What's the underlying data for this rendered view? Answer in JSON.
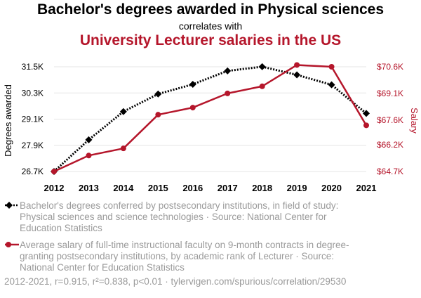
{
  "header": {
    "title": "Bachelor's degrees awarded in Physical sciences",
    "connector": "correlates with",
    "subtitle": "University Lecturer salaries in the US"
  },
  "chart_data": {
    "type": "line",
    "x": [
      2012,
      2013,
      2014,
      2015,
      2016,
      2017,
      2018,
      2019,
      2020,
      2021
    ],
    "series": [
      {
        "name": "Bachelor's degrees conferred by postsecondary institutions, in field of study: Physical sciences and science technologies · Source: National Center for Education Statistics",
        "axis": "left",
        "color": "#000000",
        "style": "dotted",
        "marker": "diamond",
        "values": [
          26702,
          28153,
          29446,
          30251,
          30695,
          31311,
          31503,
          31129,
          30673,
          29361
        ]
      },
      {
        "name": "Average salary of full-time instructional faculty on 9-month contracts in degree-granting postsecondary institutions, by academic rank of Lecturer · Source: National Center for Education Statistics",
        "axis": "right",
        "color": "#b5162b",
        "style": "solid",
        "marker": "circle",
        "values": [
          64700,
          65600,
          66000,
          67900,
          68300,
          69100,
          69500,
          70700,
          70600,
          67300
        ]
      }
    ],
    "ylabel": "Degrees awarded",
    "y2label": "Salary",
    "yticks": [
      26700,
      27900,
      29100,
      30300,
      31500
    ],
    "ytick_labels": [
      "26.7K",
      "27.9K",
      "29.1K",
      "30.3K",
      "31.5K"
    ],
    "ylim": [
      26700,
      31500
    ],
    "y2ticks": [
      64700,
      66200,
      67600,
      69100,
      70600
    ],
    "y2tick_labels": [
      "$64.7K",
      "$66.2K",
      "$67.6K",
      "$69.1K",
      "$70.6K"
    ],
    "y2lim": [
      64700,
      70600
    ],
    "grid": "horizontal",
    "legend": "below"
  },
  "footer": {
    "stats": "2012-2021, r=0.915, r²=0.838, p<0.01 · tylervigen.com/spurious/correlation/29530"
  }
}
